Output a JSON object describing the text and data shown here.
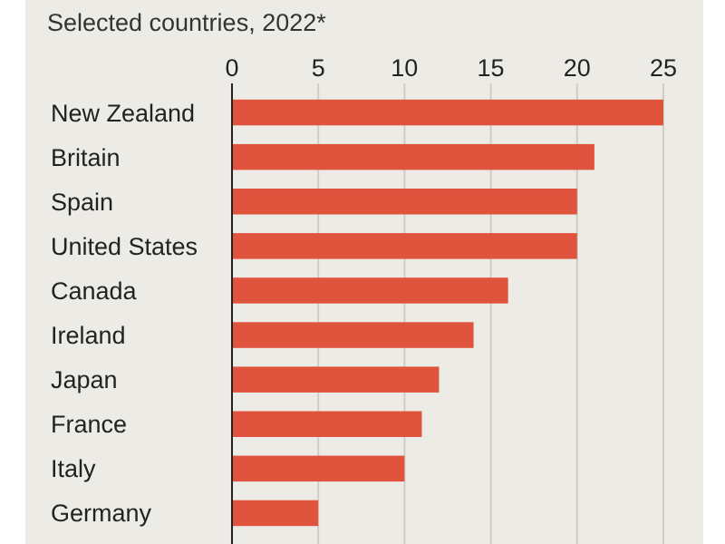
{
  "chart_data": {
    "type": "bar",
    "orientation": "horizontal",
    "subtitle": "Selected countries, 2022*",
    "categories": [
      "New Zealand",
      "Britain",
      "Spain",
      "United States",
      "Canada",
      "Ireland",
      "Japan",
      "France",
      "Italy",
      "Germany"
    ],
    "values": [
      25,
      21,
      20,
      20,
      16,
      14,
      12,
      11,
      10,
      5
    ],
    "color": "#e0533d",
    "xlim": [
      0,
      25
    ],
    "xticks": [
      0,
      5,
      10,
      15,
      20,
      25
    ],
    "grid": "x"
  }
}
